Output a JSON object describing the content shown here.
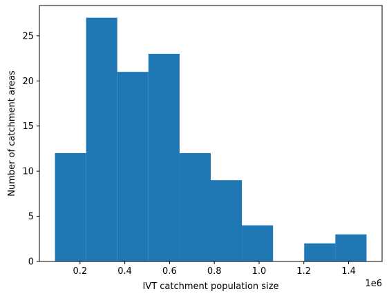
{
  "chart_data": {
    "type": "bar",
    "title": "",
    "xlabel": "IVT catchment population size",
    "ylabel": "Number of catchment areas",
    "x_offset_label": "1e6",
    "bin_edges": [
      0.088,
      0.2272,
      0.3664,
      0.5056,
      0.6448,
      0.784,
      0.9232,
      1.0624,
      1.2016,
      1.3408,
      1.48
    ],
    "values": [
      12,
      27,
      21,
      23,
      12,
      9,
      4,
      0,
      2,
      3
    ],
    "xlim": [
      0.0184,
      1.5496
    ],
    "ylim": [
      0,
      28.35
    ],
    "xticks": [
      0.2,
      0.4,
      0.6,
      0.8,
      1.0,
      1.2,
      1.4
    ],
    "xtick_labels": [
      "0.2",
      "0.4",
      "0.6",
      "0.8",
      "1.0",
      "1.2",
      "1.4"
    ],
    "yticks": [
      0,
      5,
      10,
      15,
      20,
      25
    ],
    "ytick_labels": [
      "0",
      "5",
      "10",
      "15",
      "20",
      "25"
    ],
    "bar_color": "#1f77b4",
    "grid": false
  }
}
